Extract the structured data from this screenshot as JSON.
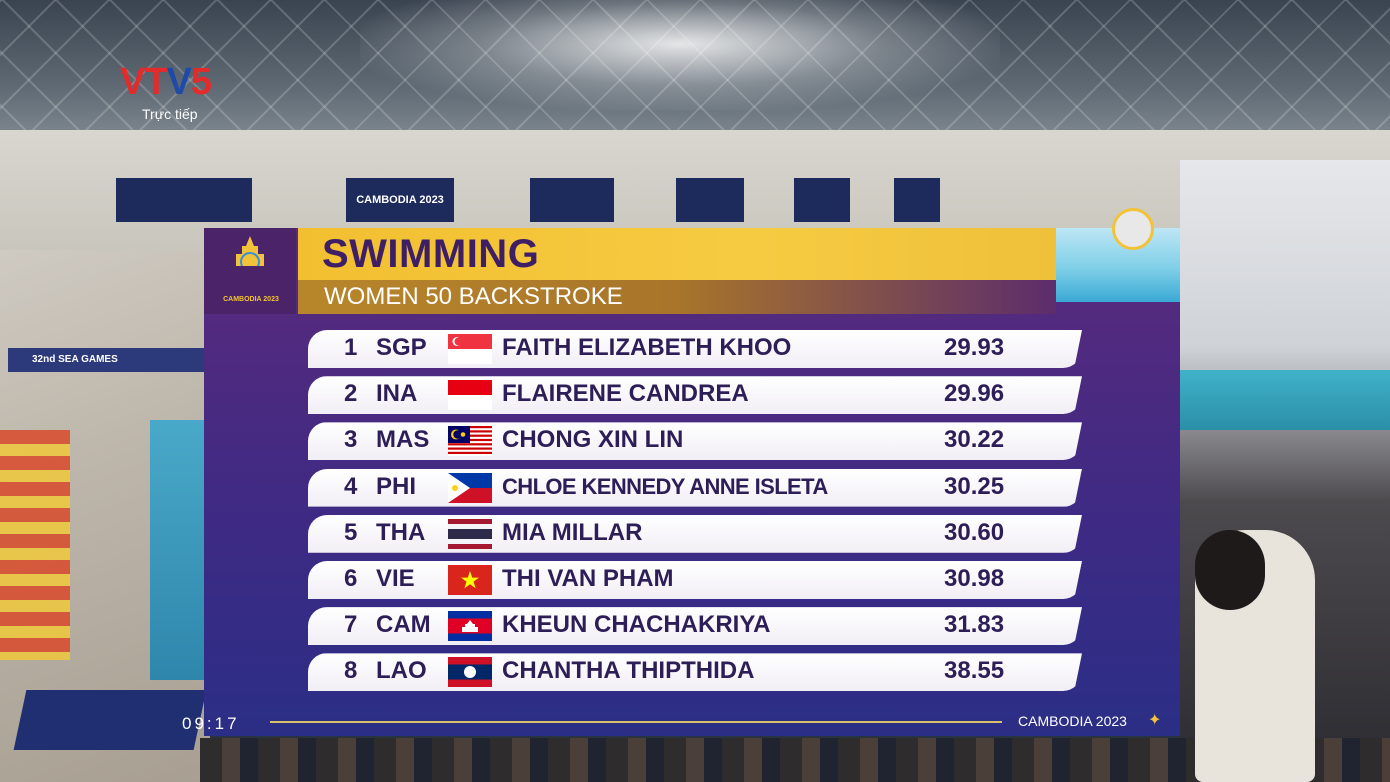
{
  "broadcaster": {
    "logo_letters": [
      "VT",
      "V",
      "5"
    ],
    "live_label": "Trực tiếp"
  },
  "arena": {
    "banner_1": "CAMBODIA 2023",
    "sign_left": "32nd SEA GAMES"
  },
  "scoreboard": {
    "emblem_text": "CAMBODIA 2023",
    "title": "SWIMMING",
    "subtitle": "WOMEN 50 BACKSTROKE",
    "results": [
      {
        "rank": "1",
        "code": "SGP",
        "flag": "singapore-flag-icon",
        "name": "FAITH ELIZABETH KHOO",
        "time": "29.93"
      },
      {
        "rank": "2",
        "code": "INA",
        "flag": "indonesia-flag-icon",
        "name": "FLAIRENE CANDREA",
        "time": "29.96"
      },
      {
        "rank": "3",
        "code": "MAS",
        "flag": "malaysia-flag-icon",
        "name": "CHONG XIN LIN",
        "time": "30.22"
      },
      {
        "rank": "4",
        "code": "PHI",
        "flag": "philippines-flag-icon",
        "name": "CHLOE KENNEDY ANNE ISLETA",
        "time": "30.25"
      },
      {
        "rank": "5",
        "code": "THA",
        "flag": "thailand-flag-icon",
        "name": "MIA MILLAR",
        "time": "30.60"
      },
      {
        "rank": "6",
        "code": "VIE",
        "flag": "vietnam-flag-icon",
        "name": "THI VAN PHAM",
        "time": "30.98"
      },
      {
        "rank": "7",
        "code": "CAM",
        "flag": "cambodia-flag-icon",
        "name": "KHEUN CHACHAKRIYA",
        "time": "31.83"
      },
      {
        "rank": "8",
        "code": "LAO",
        "flag": "laos-flag-icon",
        "name": "CHANTHA THIPTHIDA",
        "time": "38.55"
      }
    ],
    "footer_label": "CAMBODIA 2023",
    "clock": "09:17"
  },
  "colors": {
    "board_purple": "#3f2a84",
    "title_gold": "#f2bf30",
    "text_dark": "#2e1e57"
  }
}
